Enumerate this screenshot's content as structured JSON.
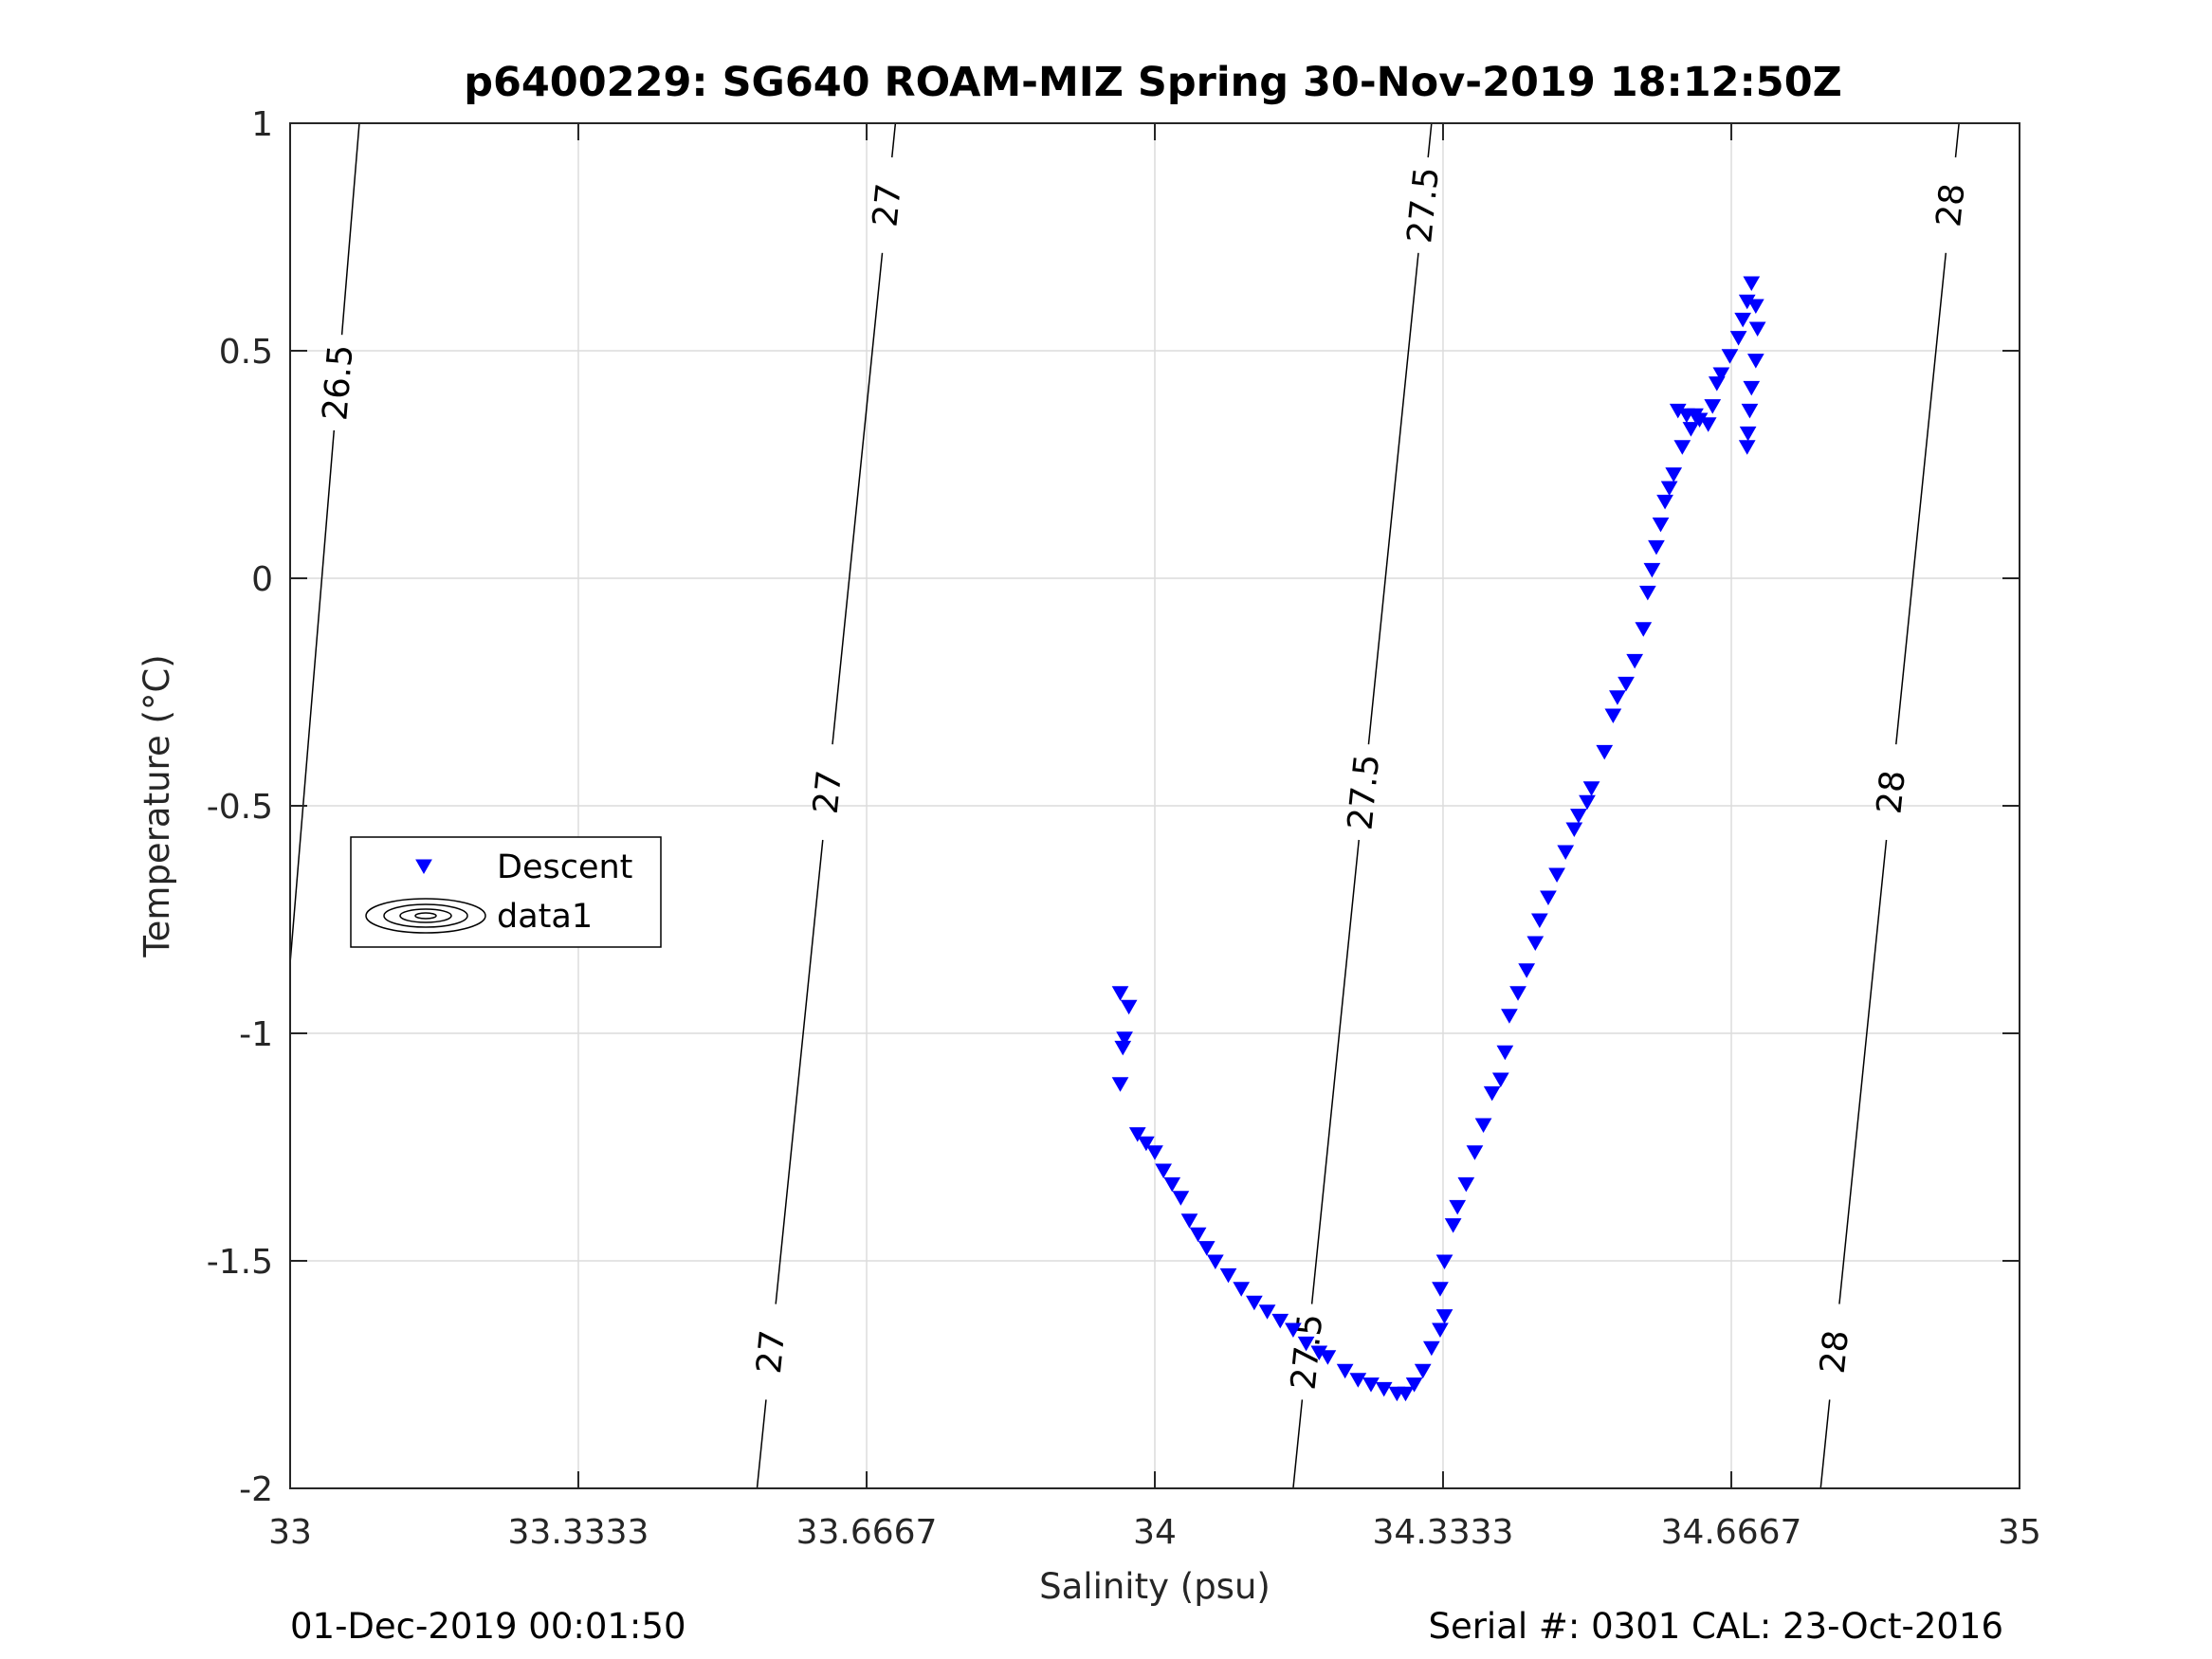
{
  "title": "p6400229: SG640 ROAM-MIZ Spring 30-Nov-2019 18:12:50Z",
  "footer": {
    "left": "01-Dec-2019 00:01:50",
    "right": "Serial #: 0301  CAL: 23-Oct-2016"
  },
  "colors": {
    "descent": "#0000ff",
    "contour": "#000000",
    "grid": "#dcdcdc",
    "axis": "#262626"
  },
  "chart_data": {
    "type": "scatter",
    "title": "p6400229: SG640 ROAM-MIZ Spring 30-Nov-2019 18:12:50Z",
    "xlabel": "Salinity (psu)",
    "ylabel": "Temperature (°C)",
    "xlim": [
      33,
      35
    ],
    "ylim": [
      -2,
      1
    ],
    "xticks": [
      33,
      33.3333,
      33.6667,
      34,
      34.3333,
      34.6667,
      35
    ],
    "xtick_labels": [
      "33",
      "33.3333",
      "33.6667",
      "34",
      "34.3333",
      "34.6667",
      "35"
    ],
    "yticks": [
      -2,
      -1.5,
      -1,
      -0.5,
      0,
      0.5,
      1
    ],
    "ytick_labels": [
      "-2",
      "-1.5",
      "-1",
      "-0.5",
      "0",
      "0.5",
      "1"
    ],
    "grid": true,
    "legend": {
      "placement": "middle-left",
      "entries": [
        "Descent",
        "data1"
      ]
    },
    "series": [
      {
        "name": "Descent",
        "marker": "downward-triangle",
        "color": "#0000ff",
        "points": [
          [
            33.96,
            -0.91
          ],
          [
            33.97,
            -0.94
          ],
          [
            33.965,
            -1.01
          ],
          [
            33.963,
            -1.03
          ],
          [
            33.96,
            -1.11
          ],
          [
            33.98,
            -1.22
          ],
          [
            33.99,
            -1.24
          ],
          [
            34.0,
            -1.26
          ],
          [
            34.01,
            -1.3
          ],
          [
            34.02,
            -1.33
          ],
          [
            34.03,
            -1.36
          ],
          [
            34.04,
            -1.41
          ],
          [
            34.05,
            -1.44
          ],
          [
            34.06,
            -1.47
          ],
          [
            34.07,
            -1.5
          ],
          [
            34.085,
            -1.53
          ],
          [
            34.1,
            -1.56
          ],
          [
            34.115,
            -1.59
          ],
          [
            34.13,
            -1.61
          ],
          [
            34.145,
            -1.63
          ],
          [
            34.16,
            -1.65
          ],
          [
            34.175,
            -1.68
          ],
          [
            34.19,
            -1.7
          ],
          [
            34.2,
            -1.71
          ],
          [
            34.22,
            -1.74
          ],
          [
            34.235,
            -1.76
          ],
          [
            34.25,
            -1.77
          ],
          [
            34.265,
            -1.78
          ],
          [
            34.28,
            -1.79
          ],
          [
            34.29,
            -1.79
          ],
          [
            34.3,
            -1.77
          ],
          [
            34.31,
            -1.74
          ],
          [
            34.32,
            -1.69
          ],
          [
            34.33,
            -1.65
          ],
          [
            34.335,
            -1.62
          ],
          [
            34.33,
            -1.56
          ],
          [
            34.335,
            -1.5
          ],
          [
            34.345,
            -1.42
          ],
          [
            34.35,
            -1.38
          ],
          [
            34.36,
            -1.33
          ],
          [
            34.37,
            -1.26
          ],
          [
            34.38,
            -1.2
          ],
          [
            34.39,
            -1.13
          ],
          [
            34.4,
            -1.1
          ],
          [
            34.405,
            -1.04
          ],
          [
            34.41,
            -0.96
          ],
          [
            34.42,
            -0.91
          ],
          [
            34.43,
            -0.86
          ],
          [
            34.44,
            -0.8
          ],
          [
            34.445,
            -0.75
          ],
          [
            34.455,
            -0.7
          ],
          [
            34.465,
            -0.65
          ],
          [
            34.475,
            -0.6
          ],
          [
            34.485,
            -0.55
          ],
          [
            34.49,
            -0.52
          ],
          [
            34.5,
            -0.49
          ],
          [
            34.505,
            -0.46
          ],
          [
            34.52,
            -0.38
          ],
          [
            34.53,
            -0.3
          ],
          [
            34.535,
            -0.26
          ],
          [
            34.545,
            -0.23
          ],
          [
            34.555,
            -0.18
          ],
          [
            34.565,
            -0.11
          ],
          [
            34.57,
            -0.03
          ],
          [
            34.575,
            0.02
          ],
          [
            34.58,
            0.07
          ],
          [
            34.585,
            0.12
          ],
          [
            34.59,
            0.17
          ],
          [
            34.595,
            0.2
          ],
          [
            34.6,
            0.23
          ],
          [
            34.61,
            0.29
          ],
          [
            34.62,
            0.33
          ],
          [
            34.63,
            0.35
          ],
          [
            34.605,
            0.37
          ],
          [
            34.615,
            0.36
          ],
          [
            34.625,
            0.36
          ],
          [
            34.64,
            0.34
          ],
          [
            34.645,
            0.38
          ],
          [
            34.65,
            0.43
          ],
          [
            34.655,
            0.45
          ],
          [
            34.665,
            0.49
          ],
          [
            34.675,
            0.53
          ],
          [
            34.68,
            0.57
          ],
          [
            34.685,
            0.61
          ],
          [
            34.69,
            0.65
          ],
          [
            34.695,
            0.6
          ],
          [
            34.697,
            0.55
          ],
          [
            34.695,
            0.48
          ],
          [
            34.69,
            0.42
          ],
          [
            34.688,
            0.37
          ],
          [
            34.686,
            0.32
          ],
          [
            34.685,
            0.29
          ]
        ]
      }
    ],
    "density_contours": [
      {
        "level": 26.5,
        "labels": [
          "26.5"
        ],
        "x_at_ymin": 32.95,
        "x_at_ymax": 33.08
      },
      {
        "level": 27,
        "labels": [
          "27",
          "27",
          "27"
        ],
        "x_at_ymin": 33.54,
        "x_at_ymax": 33.7
      },
      {
        "level": 27.5,
        "labels": [
          "27.5",
          "27.5",
          "27.5"
        ],
        "x_at_ymin": 34.16,
        "x_at_ymax": 34.32
      },
      {
        "level": 28,
        "labels": [
          "28",
          "28",
          "28"
        ],
        "x_at_ymin": 34.77,
        "x_at_ymax": 34.93
      }
    ]
  }
}
